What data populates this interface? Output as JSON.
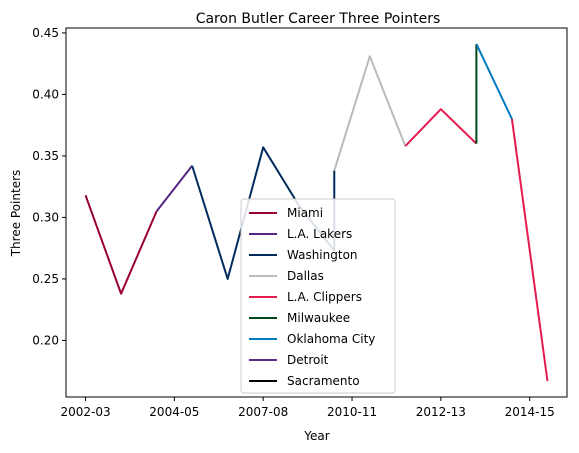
{
  "chart_data": {
    "type": "line",
    "title": "Caron Butler Career Three Pointers",
    "xlabel": "Year",
    "ylabel": "Three Pointers",
    "xlim": [
      -0.55,
      13.55
    ],
    "ylim": [
      0.154,
      0.454
    ],
    "x_tick_labels": [
      {
        "x": 0,
        "label": "2002-03"
      },
      {
        "x": 2.5,
        "label": "2004-05"
      },
      {
        "x": 5,
        "label": "2007-08"
      },
      {
        "x": 7.5,
        "label": "2010-11"
      },
      {
        "x": 10,
        "label": "2012-13"
      },
      {
        "x": 12.5,
        "label": "2014-15"
      }
    ],
    "y_ticks": [
      0.2,
      0.25,
      0.3,
      0.35,
      0.4,
      0.45
    ],
    "y_tick_labels": [
      "0.20",
      "0.25",
      "0.30",
      "0.35",
      "0.40",
      "0.45"
    ],
    "legend_location": "lower center",
    "series": [
      {
        "name": "Miami",
        "color": "#98002E",
        "points": [
          [
            0,
            0.318
          ],
          [
            1,
            0.238
          ],
          [
            2,
            0.305
          ]
        ]
      },
      {
        "name": "L.A. Lakers",
        "color": "#552583",
        "points": [
          [
            2,
            0.305
          ],
          [
            3,
            0.342
          ]
        ]
      },
      {
        "name": "Washington",
        "color": "#002B5C",
        "points": [
          [
            3,
            0.342
          ],
          [
            4,
            0.25
          ],
          [
            5,
            0.357
          ],
          [
            6,
            0.31
          ],
          [
            7,
            0.273
          ],
          [
            7,
            0.338
          ]
        ]
      },
      {
        "name": "Dallas",
        "color": "#BBBBBB",
        "points": [
          [
            7,
            0.338
          ],
          [
            8,
            0.431
          ],
          [
            9,
            0.358
          ]
        ]
      },
      {
        "name": "L.A. Clippers",
        "color": "#E31B4F",
        "points": [
          [
            9,
            0.358
          ],
          [
            10,
            0.388
          ],
          [
            11,
            0.36
          ]
        ]
      },
      {
        "name": "Milwaukee",
        "color": "#00471B",
        "points": [
          [
            11,
            0.36
          ],
          [
            11,
            0.441
          ]
        ]
      },
      {
        "name": "Oklahoma City",
        "color": "#007AC1",
        "points": [
          [
            11,
            0.441
          ],
          [
            12,
            0.38
          ]
        ]
      },
      {
        "name": "Detroit",
        "color": "#5B2C83",
        "points": []
      },
      {
        "name": "Sacramento",
        "color": "#000000",
        "points": []
      },
      {
        "name": "",
        "color": "#E31B4F",
        "points": [
          [
            12,
            0.38
          ],
          [
            13,
            0.167
          ]
        ]
      }
    ]
  }
}
